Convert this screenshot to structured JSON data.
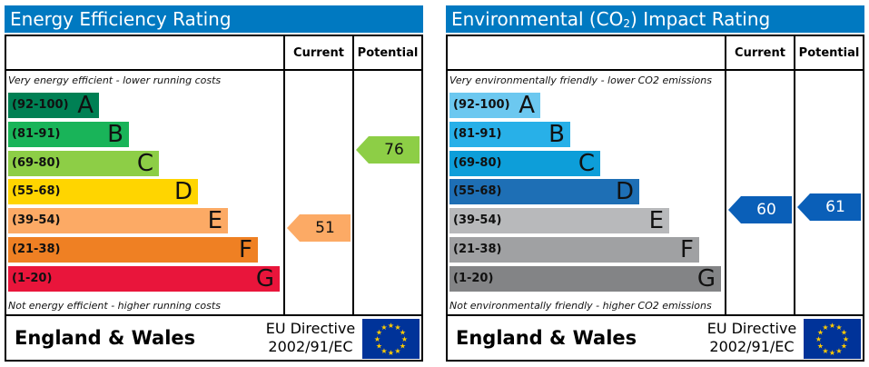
{
  "chart_data": [
    {
      "type": "bar",
      "title": "Energy Efficiency Rating",
      "columns": [
        "Current",
        "Potential"
      ],
      "top_note": "Very energy efficient - lower running costs",
      "bottom_note": "Not energy efficient - higher running costs",
      "bands": [
        {
          "range": "(92-100)",
          "letter": "A",
          "color": "#008054"
        },
        {
          "range": "(81-91)",
          "letter": "B",
          "color": "#19b459"
        },
        {
          "range": "(69-80)",
          "letter": "C",
          "color": "#8dce46"
        },
        {
          "range": "(55-68)",
          "letter": "D",
          "color": "#ffd500"
        },
        {
          "range": "(39-54)",
          "letter": "E",
          "color": "#fcaa65"
        },
        {
          "range": "(21-38)",
          "letter": "F",
          "color": "#ef8023"
        },
        {
          "range": "(1-20)",
          "letter": "G",
          "color": "#e9153b"
        }
      ],
      "current": {
        "value": 51,
        "band": "E",
        "color": "#fcaa65"
      },
      "potential": {
        "value": 76,
        "band": "C",
        "color": "#8dce46"
      },
      "footer": {
        "region": "England & Wales",
        "directive_line1": "EU Directive",
        "directive_line2": "2002/91/EC"
      }
    },
    {
      "type": "bar",
      "title_prefix": "Environmental (CO",
      "title_sub": "2",
      "title_suffix": ") Impact Rating",
      "columns": [
        "Current",
        "Potential"
      ],
      "top_note": "Very environmentally friendly - lower CO2 emissions",
      "bottom_note": "Not environmentally friendly - higher CO2 emissions",
      "bands": [
        {
          "range": "(92-100)",
          "letter": "A",
          "color": "#6cc8f0"
        },
        {
          "range": "(81-91)",
          "letter": "B",
          "color": "#28b0e8"
        },
        {
          "range": "(69-80)",
          "letter": "C",
          "color": "#0d9ed9"
        },
        {
          "range": "(55-68)",
          "letter": "D",
          "color": "#1e6fb5"
        },
        {
          "range": "(39-54)",
          "letter": "E",
          "color": "#b8b9bb"
        },
        {
          "range": "(21-38)",
          "letter": "F",
          "color": "#a0a1a3"
        },
        {
          "range": "(1-20)",
          "letter": "G",
          "color": "#838486"
        }
      ],
      "current": {
        "value": 60,
        "band": "D",
        "color": "#0a5fb8"
      },
      "potential": {
        "value": 61,
        "band": "D",
        "color": "#0a5fb8"
      },
      "footer": {
        "region": "England & Wales",
        "directive_line1": "EU Directive",
        "directive_line2": "2002/91/EC"
      }
    }
  ]
}
